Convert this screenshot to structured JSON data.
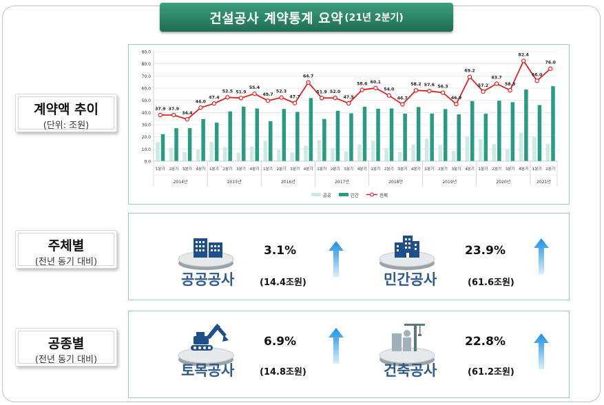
{
  "title": {
    "main": "건설공사 계약통계 요약",
    "sub": "(21년 2분기)"
  },
  "sections": {
    "trend": {
      "label": "계약액 추이",
      "sub": "(단위: 조원)"
    },
    "by_subject": {
      "label": "주체별",
      "sub": "(전년 동기 대비)"
    },
    "by_type": {
      "label": "공종별",
      "sub": "(전년 동기 대비)"
    }
  },
  "subject_items": [
    {
      "name": "공공공사",
      "pct": "3.1%",
      "amount": "(14.4조원)",
      "icon": "public-building-icon",
      "trend": "up"
    },
    {
      "name": "민간공사",
      "pct": "23.9%",
      "amount": "(61.6조원)",
      "icon": "private-building-icon",
      "trend": "up"
    }
  ],
  "type_items": [
    {
      "name": "토목공사",
      "pct": "6.9%",
      "amount": "(14.8조원)",
      "icon": "excavator-icon",
      "trend": "up"
    },
    {
      "name": "건축공사",
      "pct": "22.8%",
      "amount": "(61.2조원)",
      "icon": "crane-building-icon",
      "trend": "up"
    }
  ],
  "colors": {
    "public": "#cde9e3",
    "private": "#2a9a84",
    "total": "#e02020",
    "accent": "#2a8866",
    "arrow": "#2a9ae0"
  },
  "chart_data": {
    "type": "bar",
    "categories": [
      "1분기",
      "2분기",
      "3분기",
      "4분기",
      "1분기",
      "2분기",
      "3분기",
      "4분기",
      "1분기",
      "2분기",
      "3분기",
      "4분기",
      "1분기",
      "2분기",
      "3분기",
      "4분기",
      "1분기",
      "2분기",
      "3분기",
      "4분기",
      "1분기",
      "2분기",
      "3분기",
      "4분기",
      "1분기",
      "2분기",
      "3분기",
      "4분기",
      "1분기",
      "2분기"
    ],
    "years": [
      {
        "label": "2014년",
        "count": 4
      },
      {
        "label": "2015년",
        "count": 4
      },
      {
        "label": "2016년",
        "count": 4
      },
      {
        "label": "2017년",
        "count": 4
      },
      {
        "label": "2018년",
        "count": 4
      },
      {
        "label": "2019년",
        "count": 4
      },
      {
        "label": "2020년",
        "count": 4
      },
      {
        "label": "2021년",
        "count": 2
      }
    ],
    "series": [
      {
        "name": "공공",
        "type": "bar",
        "values": [
          15.7,
          10.8,
          7.3,
          9.4,
          15.8,
          11.6,
          7.1,
          12.1,
          16.8,
          9.4,
          7.2,
          12.8,
          17.2,
          10.6,
          8.1,
          13.9,
          17.0,
          10.7,
          7.6,
          13.7,
          18.4,
          13.5,
          8.4,
          19.8,
          18.2,
          14.0,
          9.8,
          23.5,
          19.9,
          14.4
        ]
      },
      {
        "name": "민간",
        "type": "bar",
        "values": [
          22.2,
          27.1,
          27.1,
          34.6,
          31.6,
          40.9,
          44.8,
          43.3,
          32.9,
          42.9,
          40.5,
          51.9,
          34.7,
          41.4,
          39.4,
          44.7,
          43.1,
          43.3,
          39.1,
          44.5,
          39.2,
          42.8,
          38.5,
          49.4,
          39.0,
          49.7,
          48.5,
          58.9,
          46.1,
          61.6
        ]
      },
      {
        "name": "전체",
        "type": "line",
        "values": [
          37.9,
          37.9,
          34.4,
          44.0,
          47.4,
          52.5,
          51.9,
          55.4,
          49.7,
          52.3,
          47.7,
          64.7,
          51.9,
          52.0,
          47.5,
          58.6,
          60.1,
          54.0,
          46.7,
          58.2,
          57.6,
          56.3,
          46.9,
          69.2,
          57.2,
          63.7,
          58.3,
          82.4,
          66.0,
          76.0
        ]
      }
    ],
    "line_labels": [
      "37.9",
      "37.9",
      "34.4",
      "44.0",
      "47.4",
      "52.5",
      "51.9",
      "55.4",
      "49.7",
      "52.3",
      "47.7",
      "64.7",
      "51.9",
      "52.0",
      "47.5",
      "58.6",
      "60.1",
      "54.0",
      "46.7",
      "58.2",
      "57.6",
      "56.3",
      "46.9",
      "69.2",
      "57.2",
      "63.7",
      "58.3",
      "82.4",
      "66.0",
      "76.0"
    ],
    "yticks": [
      "0.0",
      "10.0",
      "20.0",
      "30.0",
      "40.0",
      "50.0",
      "60.0",
      "70.0",
      "80.0",
      "90.0"
    ],
    "ylim": [
      0,
      90
    ],
    "legend": [
      "공공",
      "민간",
      "전체"
    ],
    "legend_position": "bottom"
  }
}
